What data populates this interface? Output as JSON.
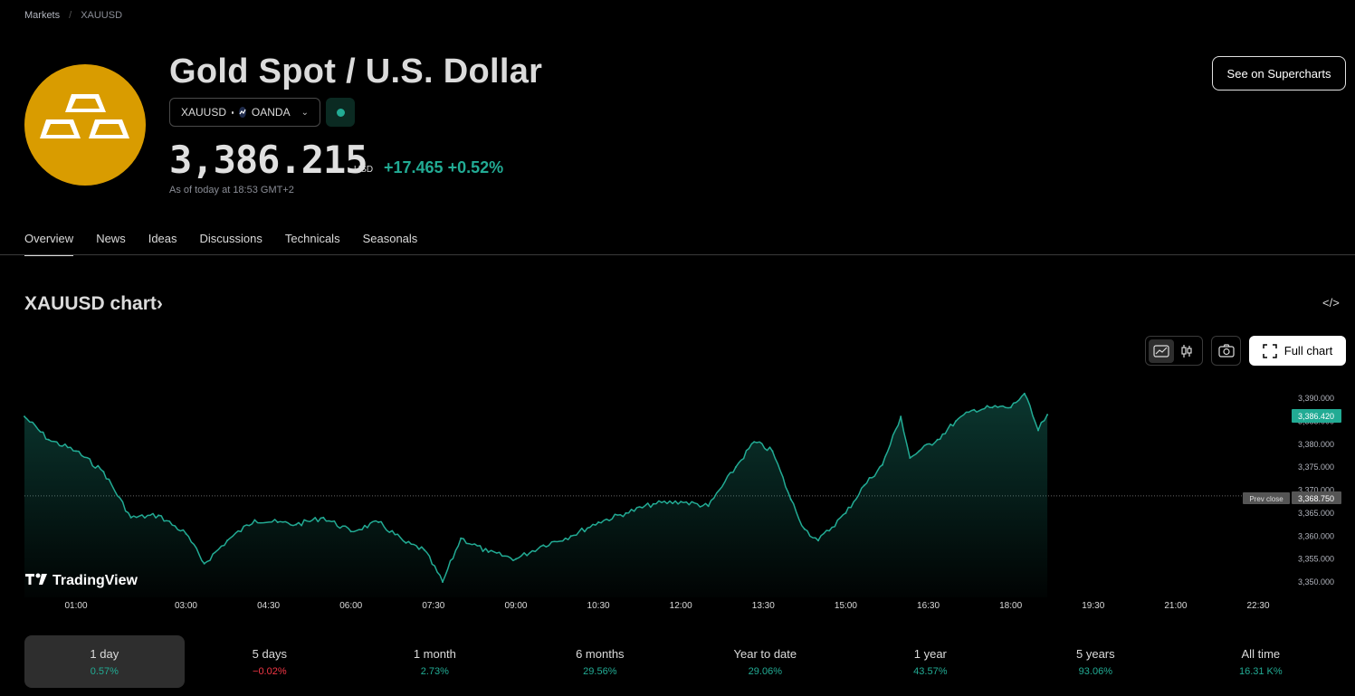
{
  "breadcrumb": {
    "root": "Markets",
    "separator": "/",
    "current": "XAUUSD"
  },
  "header": {
    "title": "Gold Spot / U.S. Dollar",
    "symbol": "XAUUSD",
    "exchange": "OANDA",
    "price": "3,386.215",
    "currency": "USD",
    "change": "+17.465",
    "change_pct": "+0.52%",
    "as_of": "As of today at 18:53 GMT+2",
    "supercharts_label": "See on Supercharts"
  },
  "tabs": [
    {
      "label": "Overview",
      "active": true
    },
    {
      "label": "News"
    },
    {
      "label": "Ideas"
    },
    {
      "label": "Discussions"
    },
    {
      "label": "Technicals"
    },
    {
      "label": "Seasonals"
    }
  ],
  "chart_section": {
    "title": "XAUUSD chart",
    "title_suffix": "›",
    "embed_icon": "</>",
    "full_chart_label": "Full chart",
    "watermark": "TradingView"
  },
  "chart_data": {
    "type": "area",
    "series": [
      {
        "name": "XAUUSD"
      }
    ],
    "x_ticks": [
      "01:00",
      "03:00",
      "04:30",
      "06:00",
      "07:30",
      "09:00",
      "10:30",
      "12:00",
      "13:30",
      "15:00",
      "16:30",
      "18:00",
      "19:30",
      "21:00",
      "22:30"
    ],
    "y_ticks": [
      "3,390.000",
      "3,385.000",
      "3,380.000",
      "3,375.000",
      "3,370.000",
      "3,365.000",
      "3,360.000",
      "3,355.000",
      "3,350.000"
    ],
    "ylim": [
      3348,
      3393
    ],
    "prev_close": 3368.75,
    "prev_close_label": "Prev close",
    "prev_close_text": "3,368.750",
    "last_price": 3386.42,
    "last_price_text": "3,386.420",
    "x": [
      "00:05",
      "00:30",
      "01:00",
      "01:30",
      "02:00",
      "02:30",
      "03:00",
      "03:20",
      "03:45",
      "04:15",
      "04:40",
      "05:00",
      "05:30",
      "06:00",
      "06:30",
      "07:00",
      "07:20",
      "07:40",
      "08:00",
      "08:30",
      "09:00",
      "09:30",
      "10:00",
      "10:30",
      "11:00",
      "11:30",
      "12:00",
      "12:30",
      "13:00",
      "13:20",
      "13:40",
      "14:00",
      "14:15",
      "14:30",
      "15:00",
      "15:20",
      "15:40",
      "16:00",
      "16:10",
      "16:20",
      "16:40",
      "17:00",
      "17:20",
      "17:40",
      "18:00",
      "18:15",
      "18:30",
      "18:40"
    ],
    "y": [
      3386.0,
      3381.0,
      3378.5,
      3374.0,
      3364.0,
      3364.5,
      3360.5,
      3354.0,
      3359.0,
      3363.5,
      3363.0,
      3362.5,
      3364.0,
      3361.0,
      3363.0,
      3358.5,
      3357.0,
      3350.0,
      3359.5,
      3356.5,
      3355.0,
      3358.0,
      3360.0,
      3363.0,
      3365.0,
      3367.0,
      3367.5,
      3366.5,
      3375.0,
      3380.5,
      3378.5,
      3368.0,
      3361.5,
      3359.0,
      3365.0,
      3371.0,
      3375.5,
      3386.0,
      3377.0,
      3378.5,
      3381.0,
      3385.0,
      3387.5,
      3388.0,
      3388.0,
      3391.0,
      3383.0,
      3386.42
    ]
  },
  "periods": [
    {
      "label": "1 day",
      "value": "0.57%",
      "trend": "pos",
      "active": true
    },
    {
      "label": "5 days",
      "value": "−0.02%",
      "trend": "neg"
    },
    {
      "label": "1 month",
      "value": "2.73%",
      "trend": "pos"
    },
    {
      "label": "6 months",
      "value": "29.56%",
      "trend": "pos"
    },
    {
      "label": "Year to date",
      "value": "29.06%",
      "trend": "pos"
    },
    {
      "label": "1 year",
      "value": "43.57%",
      "trend": "pos"
    },
    {
      "label": "5 years",
      "value": "93.06%",
      "trend": "pos"
    },
    {
      "label": "All time",
      "value": "16.31 K%",
      "trend": "pos"
    }
  ],
  "colors": {
    "accent": "#22ab94",
    "negative": "#f23645",
    "logo_bg": "#d99c00"
  }
}
